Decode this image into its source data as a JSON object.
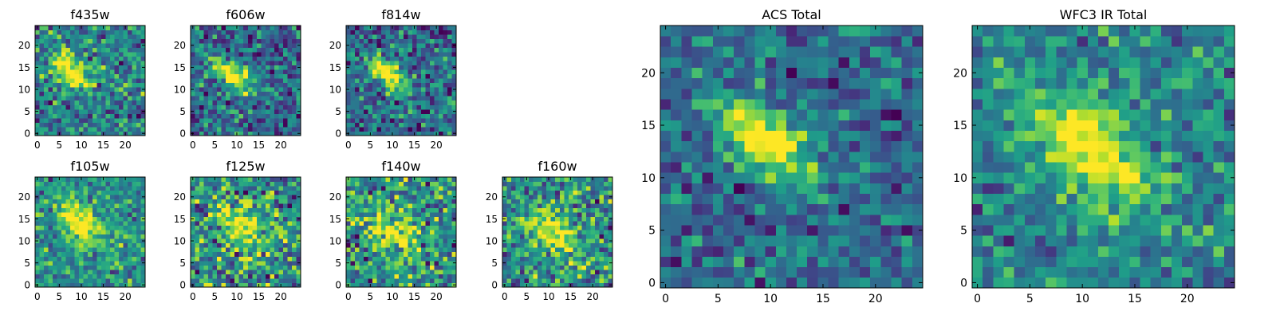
{
  "figure": {
    "background": "#ffffff",
    "colormap": "viridis",
    "colormap_stops": [
      "#440154",
      "#482878",
      "#3e4989",
      "#31688e",
      "#26828e",
      "#1f9e89",
      "#35b779",
      "#6ece58",
      "#b5de2b",
      "#fde725"
    ]
  },
  "chart_data": [
    {
      "type": "heatmap",
      "title": "f435w",
      "grid_size": [
        25,
        25
      ],
      "xlim": [
        0,
        24
      ],
      "ylim": [
        0,
        24
      ],
      "xticks": [
        0,
        5,
        10,
        15,
        20
      ],
      "yticks": [
        0,
        5,
        10,
        15,
        20
      ],
      "source": {
        "center": [
          8,
          14
        ],
        "sigma_major": 3.5,
        "sigma_minor": 1.7,
        "angle_deg": -40,
        "amplitude": 0.8
      },
      "background_level": 0.45,
      "noise": 0.18,
      "seed": 11
    },
    {
      "type": "heatmap",
      "title": "f606w",
      "grid_size": [
        25,
        25
      ],
      "xlim": [
        0,
        24
      ],
      "ylim": [
        0,
        24
      ],
      "xticks": [
        0,
        5,
        10,
        15,
        20
      ],
      "yticks": [
        0,
        5,
        10,
        15,
        20
      ],
      "source": {
        "center": [
          9,
          13.5
        ],
        "sigma_major": 3.8,
        "sigma_minor": 1.7,
        "angle_deg": -40,
        "amplitude": 0.75
      },
      "background_level": 0.35,
      "noise": 0.18,
      "seed": 23
    },
    {
      "type": "heatmap",
      "title": "f814w",
      "grid_size": [
        25,
        25
      ],
      "xlim": [
        0,
        24
      ],
      "ylim": [
        0,
        24
      ],
      "xticks": [
        0,
        5,
        10,
        15,
        20
      ],
      "yticks": [
        0,
        5,
        10,
        15,
        20
      ],
      "source": {
        "center": [
          9,
          13.5
        ],
        "sigma_major": 3.8,
        "sigma_minor": 1.8,
        "angle_deg": -40,
        "amplitude": 0.75
      },
      "background_level": 0.35,
      "noise": 0.18,
      "seed": 37
    },
    {
      "type": "heatmap",
      "title": "f105w",
      "grid_size": [
        25,
        25
      ],
      "xlim": [
        0,
        24
      ],
      "ylim": [
        0,
        24
      ],
      "xticks": [
        0,
        5,
        10,
        15,
        20
      ],
      "yticks": [
        0,
        5,
        10,
        15,
        20
      ],
      "source": {
        "center": [
          10,
          14
        ],
        "sigma_major": 4.2,
        "sigma_minor": 2.5,
        "angle_deg": -45,
        "amplitude": 0.6
      },
      "background_level": 0.5,
      "noise": 0.16,
      "seed": 41
    },
    {
      "type": "heatmap",
      "title": "f125w",
      "grid_size": [
        25,
        25
      ],
      "xlim": [
        0,
        24
      ],
      "ylim": [
        0,
        24
      ],
      "xticks": [
        0,
        5,
        10,
        15,
        20
      ],
      "yticks": [
        0,
        5,
        10,
        15,
        20
      ],
      "source": {
        "center": [
          11,
          13
        ],
        "sigma_major": 5,
        "sigma_minor": 2.8,
        "angle_deg": -45,
        "amplitude": 0.45
      },
      "background_level": 0.5,
      "noise": 0.22,
      "seed": 53
    },
    {
      "type": "heatmap",
      "title": "f140w",
      "grid_size": [
        25,
        25
      ],
      "xlim": [
        0,
        24
      ],
      "ylim": [
        0,
        24
      ],
      "xticks": [
        0,
        5,
        10,
        15,
        20
      ],
      "yticks": [
        0,
        5,
        10,
        15,
        20
      ],
      "source": {
        "center": [
          10,
          12
        ],
        "sigma_major": 5,
        "sigma_minor": 2.8,
        "angle_deg": -40,
        "amplitude": 0.5
      },
      "background_level": 0.5,
      "noise": 0.22,
      "seed": 67
    },
    {
      "type": "heatmap",
      "title": "f160w",
      "grid_size": [
        25,
        25
      ],
      "xlim": [
        0,
        24
      ],
      "ylim": [
        0,
        24
      ],
      "xticks": [
        0,
        5,
        10,
        15,
        20
      ],
      "yticks": [
        0,
        5,
        10,
        15,
        20
      ],
      "source": {
        "center": [
          11,
          12
        ],
        "sigma_major": 5,
        "sigma_minor": 2.6,
        "angle_deg": -40,
        "amplitude": 0.5
      },
      "background_level": 0.5,
      "noise": 0.2,
      "seed": 79
    },
    {
      "type": "heatmap",
      "title": "ACS Total",
      "grid_size": [
        25,
        25
      ],
      "xlim": [
        0,
        24
      ],
      "ylim": [
        0,
        24
      ],
      "xticks": [
        0,
        5,
        10,
        15,
        20
      ],
      "yticks": [
        0,
        5,
        10,
        15,
        20
      ],
      "source": {
        "center": [
          9.5,
          13.5
        ],
        "sigma_major": 3.8,
        "sigma_minor": 1.9,
        "angle_deg": -40,
        "amplitude": 0.75
      },
      "background_level": 0.35,
      "noise": 0.14,
      "seed": 97
    },
    {
      "type": "heatmap",
      "title": "WFC3 IR Total",
      "grid_size": [
        25,
        25
      ],
      "xlim": [
        0,
        24
      ],
      "ylim": [
        0,
        24
      ],
      "xticks": [
        0,
        5,
        10,
        15,
        20
      ],
      "yticks": [
        0,
        5,
        10,
        15,
        20
      ],
      "source": {
        "center": [
          11,
          12.5
        ],
        "sigma_major": 5,
        "sigma_minor": 2.5,
        "angle_deg": -42,
        "amplitude": 0.6
      },
      "background_level": 0.45,
      "noise": 0.14,
      "seed": 113
    }
  ]
}
